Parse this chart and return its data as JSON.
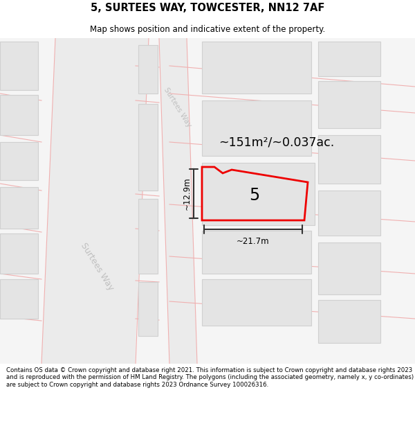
{
  "title": "5, SURTEES WAY, TOWCESTER, NN12 7AF",
  "subtitle": "Map shows position and indicative extent of the property.",
  "footer": "Contains OS data © Crown copyright and database right 2021. This information is subject to Crown copyright and database rights 2023 and is reproduced with the permission of HM Land Registry. The polygons (including the associated geometry, namely x, y co-ordinates) are subject to Crown copyright and database rights 2023 Ordnance Survey 100026316.",
  "bg_color": "#f2f2f2",
  "building_color": "#e4e4e4",
  "building_edge": "#d0d0d0",
  "road_strip_color": "#ebebeb",
  "road_line_color": "#f0b0b0",
  "plot_edge_color": "#ee0000",
  "dim_color": "#333333",
  "road_text_color": "#b8b8b8",
  "plot_label": "5",
  "area_label": "~151m²/~0.037ac.",
  "width_label": "~21.7m",
  "height_label": "~12.9m",
  "road_label": "Surtees Way",
  "title_fontsize": 10.5,
  "subtitle_fontsize": 8.5,
  "footer_fontsize": 6.2
}
